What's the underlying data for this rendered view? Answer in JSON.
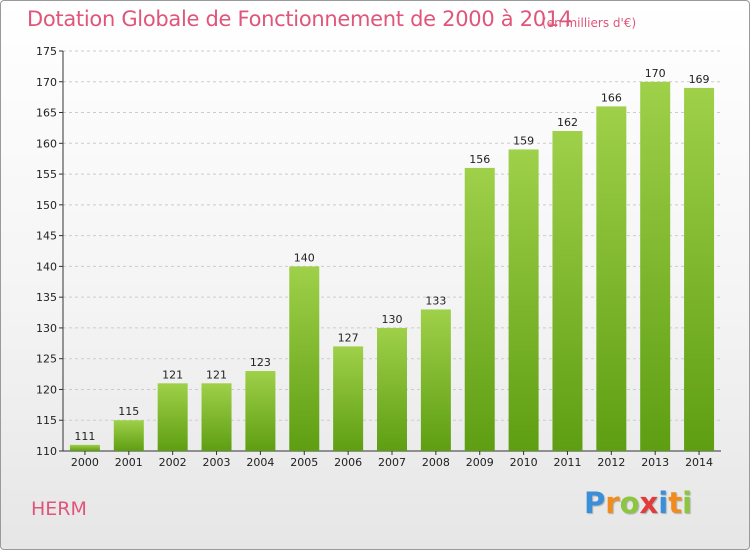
{
  "title": "Dotation Globale de Fonctionnement de 2000 à 2014",
  "subtitle": "(en milliers d'€)",
  "commune": "HERM",
  "logo": {
    "text": "Proxiti",
    "letters": [
      {
        "ch": "P",
        "color": "#3a8fd8"
      },
      {
        "ch": "r",
        "color": "#f08c1e"
      },
      {
        "ch": "o",
        "color": "#8cc63f"
      },
      {
        "ch": "x",
        "color": "#e03c3c"
      },
      {
        "ch": "i",
        "color": "#3a8fd8"
      },
      {
        "ch": "t",
        "color": "#f08c1e"
      },
      {
        "ch": "i",
        "color": "#8cc63f"
      }
    ]
  },
  "colors": {
    "title": "#e0557a",
    "bar_light": "#9fd04a",
    "bar_dark": "#5e9e12",
    "grid": "#cccccc",
    "axis": "#333333"
  },
  "chart_data": {
    "type": "bar",
    "categories": [
      "2000",
      "2001",
      "2002",
      "2003",
      "2004",
      "2005",
      "2006",
      "2007",
      "2008",
      "2009",
      "2010",
      "2011",
      "2012",
      "2013",
      "2014"
    ],
    "values": [
      111,
      115,
      121,
      121,
      123,
      140,
      127,
      130,
      133,
      156,
      159,
      162,
      166,
      170,
      169
    ],
    "ylim": [
      110,
      175
    ],
    "yticks": [
      110,
      115,
      120,
      125,
      130,
      135,
      140,
      145,
      150,
      155,
      160,
      165,
      170,
      175
    ],
    "grid": "horizontal dashed",
    "legend": "none",
    "data_labels": true
  }
}
